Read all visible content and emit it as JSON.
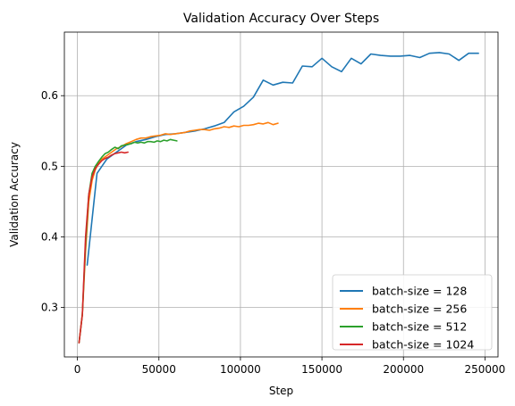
{
  "chart_data": {
    "type": "line",
    "title": "Validation Accuracy Over Steps",
    "xlabel": "Step",
    "ylabel": "Validation Accuracy",
    "xlim": [
      -8000,
      258000
    ],
    "ylim": [
      0.23,
      0.69
    ],
    "xticks": [
      0,
      50000,
      100000,
      150000,
      200000,
      250000
    ],
    "xtick_labels": [
      "0",
      "50000",
      "100000",
      "150000",
      "200000",
      "250000"
    ],
    "yticks": [
      0.3,
      0.4,
      0.5,
      0.6
    ],
    "ytick_labels": [
      "0.3",
      "0.4",
      "0.5",
      "0.6"
    ],
    "grid": true,
    "legend_position": "lower-right",
    "series": [
      {
        "name": "batch-size = 128",
        "color": "#1f77b4",
        "x": [
          6000,
          12000,
          18000,
          24000,
          30000,
          36000,
          42000,
          48000,
          54000,
          60000,
          66000,
          72000,
          78000,
          84000,
          90000,
          96000,
          102000,
          108000,
          114000,
          120000,
          126000,
          132000,
          138000,
          144000,
          150000,
          156000,
          162000,
          168000,
          174000,
          180000,
          186000,
          192000,
          198000,
          204000,
          210000,
          216000,
          222000,
          228000,
          234000,
          240000,
          246000
        ],
        "y": [
          0.36,
          0.49,
          0.51,
          0.52,
          0.53,
          0.535,
          0.538,
          0.542,
          0.545,
          0.546,
          0.548,
          0.55,
          0.553,
          0.557,
          0.562,
          0.577,
          0.585,
          0.598,
          0.622,
          0.615,
          0.619,
          0.618,
          0.642,
          0.641,
          0.653,
          0.641,
          0.634,
          0.653,
          0.645,
          0.659,
          0.657,
          0.656,
          0.656,
          0.657,
          0.654,
          0.66,
          0.661,
          0.659,
          0.65,
          0.66,
          0.66
        ]
      },
      {
        "name": "batch-size = 256",
        "color": "#ff7f0e",
        "x": [
          1000,
          3000,
          5000,
          7000,
          9000,
          11000,
          13000,
          15000,
          18000,
          21000,
          24000,
          27000,
          30000,
          33000,
          36000,
          39000,
          42000,
          45000,
          48000,
          51000,
          54000,
          57000,
          60000,
          63000,
          66000,
          69000,
          72000,
          75000,
          78000,
          81000,
          84000,
          87000,
          90000,
          93000,
          96000,
          99000,
          102000,
          105000,
          108000,
          111000,
          114000,
          117000,
          120000,
          123000
        ],
        "y": [
          0.25,
          0.29,
          0.38,
          0.45,
          0.48,
          0.495,
          0.505,
          0.51,
          0.515,
          0.52,
          0.525,
          0.528,
          0.532,
          0.535,
          0.538,
          0.54,
          0.54,
          0.542,
          0.543,
          0.544,
          0.546,
          0.545,
          0.546,
          0.547,
          0.548,
          0.55,
          0.551,
          0.552,
          0.552,
          0.551,
          0.553,
          0.554,
          0.556,
          0.555,
          0.557,
          0.556,
          0.558,
          0.558,
          0.559,
          0.561,
          0.56,
          0.562,
          0.559,
          0.561
        ]
      },
      {
        "name": "batch-size = 512",
        "color": "#2ca02c",
        "x": [
          1000,
          3000,
          5000,
          7000,
          9000,
          11000,
          13000,
          15000,
          17000,
          19000,
          21000,
          23000,
          25000,
          27000,
          29000,
          31000,
          33000,
          35000,
          37000,
          39000,
          41000,
          43000,
          45000,
          47000,
          49000,
          51000,
          53000,
          55000,
          57000,
          59000,
          61000
        ],
        "y": [
          0.25,
          0.29,
          0.39,
          0.46,
          0.49,
          0.5,
          0.507,
          0.513,
          0.518,
          0.52,
          0.524,
          0.527,
          0.525,
          0.529,
          0.53,
          0.531,
          0.532,
          0.534,
          0.533,
          0.534,
          0.533,
          0.535,
          0.535,
          0.534,
          0.536,
          0.535,
          0.537,
          0.536,
          0.538,
          0.537,
          0.536
        ]
      },
      {
        "name": "batch-size = 1024",
        "color": "#d62728",
        "x": [
          1000,
          3000,
          5000,
          7000,
          9000,
          11000,
          13000,
          15000,
          17000,
          19000,
          21000,
          23000,
          25000,
          27000,
          29000,
          31000
        ],
        "y": [
          0.25,
          0.29,
          0.4,
          0.46,
          0.485,
          0.497,
          0.503,
          0.508,
          0.511,
          0.513,
          0.516,
          0.518,
          0.519,
          0.52,
          0.519,
          0.52
        ]
      }
    ]
  }
}
